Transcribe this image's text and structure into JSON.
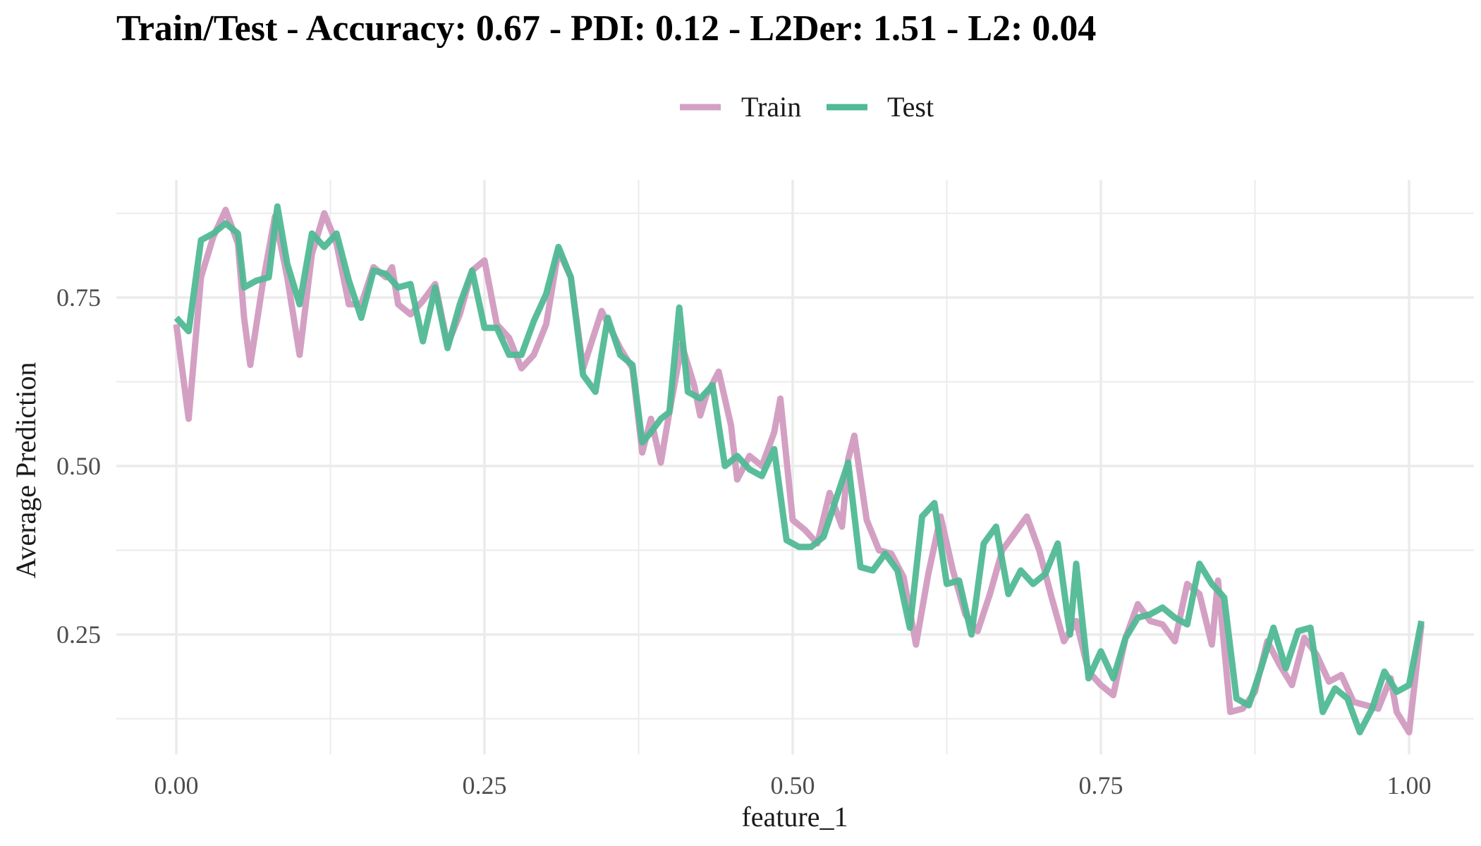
{
  "chart_data": {
    "type": "line",
    "title": "Train/Test - Accuracy: 0.67 - PDI: 0.12 - L2Der: 1.51 - L2: 0.04",
    "xlabel": "feature_1",
    "ylabel": "Average Prediction",
    "xlim": [
      -0.05,
      1.05
    ],
    "ylim": [
      0.085,
      0.935
    ],
    "x_ticks": [
      0.0,
      0.25,
      0.5,
      0.75,
      1.0
    ],
    "x_tick_labels": [
      "0.00",
      "0.25",
      "0.50",
      "0.75",
      "1.00"
    ],
    "y_ticks": [
      0.25,
      0.5,
      0.75
    ],
    "y_tick_labels": [
      "0.25",
      "0.50",
      "0.75"
    ],
    "grid": true,
    "legend_position": "top",
    "series": [
      {
        "name": "Train",
        "color": "#d3a0c3",
        "points": [
          [
            0,
            0.71
          ],
          [
            0.01,
            0.57
          ],
          [
            0.02,
            0.78
          ],
          [
            0.03,
            0.84
          ],
          [
            0.04,
            0.88
          ],
          [
            0.05,
            0.83
          ],
          [
            0.055,
            0.72
          ],
          [
            0.06,
            0.65
          ],
          [
            0.07,
            0.77
          ],
          [
            0.08,
            0.87
          ],
          [
            0.09,
            0.78
          ],
          [
            0.1,
            0.665
          ],
          [
            0.11,
            0.815
          ],
          [
            0.12,
            0.875
          ],
          [
            0.13,
            0.83
          ],
          [
            0.14,
            0.74
          ],
          [
            0.15,
            0.74
          ],
          [
            0.16,
            0.795
          ],
          [
            0.17,
            0.78
          ],
          [
            0.175,
            0.795
          ],
          [
            0.18,
            0.74
          ],
          [
            0.19,
            0.725
          ],
          [
            0.2,
            0.745
          ],
          [
            0.21,
            0.77
          ],
          [
            0.22,
            0.68
          ],
          [
            0.23,
            0.725
          ],
          [
            0.24,
            0.79
          ],
          [
            0.25,
            0.805
          ],
          [
            0.26,
            0.71
          ],
          [
            0.27,
            0.69
          ],
          [
            0.28,
            0.645
          ],
          [
            0.29,
            0.665
          ],
          [
            0.3,
            0.71
          ],
          [
            0.31,
            0.82
          ],
          [
            0.32,
            0.78
          ],
          [
            0.33,
            0.645
          ],
          [
            0.345,
            0.73
          ],
          [
            0.36,
            0.675
          ],
          [
            0.37,
            0.645
          ],
          [
            0.378,
            0.52
          ],
          [
            0.385,
            0.57
          ],
          [
            0.393,
            0.505
          ],
          [
            0.4,
            0.58
          ],
          [
            0.41,
            0.68
          ],
          [
            0.42,
            0.62
          ],
          [
            0.425,
            0.575
          ],
          [
            0.43,
            0.605
          ],
          [
            0.44,
            0.64
          ],
          [
            0.45,
            0.56
          ],
          [
            0.455,
            0.48
          ],
          [
            0.465,
            0.515
          ],
          [
            0.475,
            0.5
          ],
          [
            0.485,
            0.55
          ],
          [
            0.49,
            0.6
          ],
          [
            0.5,
            0.42
          ],
          [
            0.51,
            0.405
          ],
          [
            0.52,
            0.385
          ],
          [
            0.53,
            0.46
          ],
          [
            0.54,
            0.41
          ],
          [
            0.545,
            0.51
          ],
          [
            0.55,
            0.545
          ],
          [
            0.56,
            0.42
          ],
          [
            0.57,
            0.375
          ],
          [
            0.58,
            0.37
          ],
          [
            0.59,
            0.335
          ],
          [
            0.6,
            0.235
          ],
          [
            0.61,
            0.34
          ],
          [
            0.62,
            0.425
          ],
          [
            0.63,
            0.345
          ],
          [
            0.64,
            0.28
          ],
          [
            0.65,
            0.255
          ],
          [
            0.66,
            0.31
          ],
          [
            0.67,
            0.375
          ],
          [
            0.68,
            0.4
          ],
          [
            0.69,
            0.425
          ],
          [
            0.7,
            0.375
          ],
          [
            0.71,
            0.305
          ],
          [
            0.72,
            0.24
          ],
          [
            0.73,
            0.27
          ],
          [
            0.74,
            0.195
          ],
          [
            0.75,
            0.175
          ],
          [
            0.76,
            0.16
          ],
          [
            0.77,
            0.245
          ],
          [
            0.78,
            0.295
          ],
          [
            0.79,
            0.27
          ],
          [
            0.8,
            0.265
          ],
          [
            0.81,
            0.24
          ],
          [
            0.82,
            0.325
          ],
          [
            0.83,
            0.31
          ],
          [
            0.84,
            0.235
          ],
          [
            0.845,
            0.33
          ],
          [
            0.855,
            0.135
          ],
          [
            0.865,
            0.14
          ],
          [
            0.875,
            0.165
          ],
          [
            0.885,
            0.24
          ],
          [
            0.895,
            0.205
          ],
          [
            0.905,
            0.175
          ],
          [
            0.915,
            0.245
          ],
          [
            0.925,
            0.22
          ],
          [
            0.935,
            0.18
          ],
          [
            0.945,
            0.19
          ],
          [
            0.955,
            0.15
          ],
          [
            0.965,
            0.145
          ],
          [
            0.975,
            0.14
          ],
          [
            0.985,
            0.185
          ],
          [
            0.99,
            0.135
          ],
          [
            1.0,
            0.105
          ],
          [
            1.01,
            0.265
          ]
        ]
      },
      {
        "name": "Test",
        "color": "#50b995",
        "points": [
          [
            0,
            0.72
          ],
          [
            0.01,
            0.7
          ],
          [
            0.02,
            0.835
          ],
          [
            0.03,
            0.845
          ],
          [
            0.04,
            0.86
          ],
          [
            0.05,
            0.845
          ],
          [
            0.055,
            0.765
          ],
          [
            0.065,
            0.775
          ],
          [
            0.075,
            0.78
          ],
          [
            0.082,
            0.885
          ],
          [
            0.09,
            0.8
          ],
          [
            0.1,
            0.74
          ],
          [
            0.11,
            0.845
          ],
          [
            0.12,
            0.825
          ],
          [
            0.13,
            0.845
          ],
          [
            0.14,
            0.775
          ],
          [
            0.15,
            0.72
          ],
          [
            0.16,
            0.79
          ],
          [
            0.17,
            0.785
          ],
          [
            0.18,
            0.765
          ],
          [
            0.19,
            0.77
          ],
          [
            0.2,
            0.685
          ],
          [
            0.21,
            0.765
          ],
          [
            0.22,
            0.675
          ],
          [
            0.23,
            0.74
          ],
          [
            0.24,
            0.79
          ],
          [
            0.25,
            0.705
          ],
          [
            0.26,
            0.705
          ],
          [
            0.27,
            0.665
          ],
          [
            0.28,
            0.665
          ],
          [
            0.29,
            0.715
          ],
          [
            0.3,
            0.755
          ],
          [
            0.31,
            0.825
          ],
          [
            0.32,
            0.78
          ],
          [
            0.33,
            0.635
          ],
          [
            0.34,
            0.61
          ],
          [
            0.35,
            0.72
          ],
          [
            0.36,
            0.665
          ],
          [
            0.37,
            0.65
          ],
          [
            0.378,
            0.535
          ],
          [
            0.385,
            0.55
          ],
          [
            0.393,
            0.57
          ],
          [
            0.4,
            0.58
          ],
          [
            0.408,
            0.735
          ],
          [
            0.415,
            0.61
          ],
          [
            0.425,
            0.6
          ],
          [
            0.435,
            0.62
          ],
          [
            0.445,
            0.5
          ],
          [
            0.455,
            0.515
          ],
          [
            0.465,
            0.495
          ],
          [
            0.475,
            0.485
          ],
          [
            0.485,
            0.525
          ],
          [
            0.495,
            0.39
          ],
          [
            0.505,
            0.38
          ],
          [
            0.515,
            0.38
          ],
          [
            0.525,
            0.395
          ],
          [
            0.535,
            0.45
          ],
          [
            0.545,
            0.505
          ],
          [
            0.555,
            0.35
          ],
          [
            0.565,
            0.345
          ],
          [
            0.575,
            0.37
          ],
          [
            0.585,
            0.345
          ],
          [
            0.595,
            0.26
          ],
          [
            0.605,
            0.425
          ],
          [
            0.615,
            0.445
          ],
          [
            0.625,
            0.325
          ],
          [
            0.635,
            0.33
          ],
          [
            0.645,
            0.25
          ],
          [
            0.655,
            0.385
          ],
          [
            0.665,
            0.41
          ],
          [
            0.675,
            0.31
          ],
          [
            0.685,
            0.345
          ],
          [
            0.695,
            0.325
          ],
          [
            0.705,
            0.34
          ],
          [
            0.715,
            0.385
          ],
          [
            0.725,
            0.25
          ],
          [
            0.73,
            0.355
          ],
          [
            0.74,
            0.185
          ],
          [
            0.75,
            0.225
          ],
          [
            0.76,
            0.185
          ],
          [
            0.77,
            0.245
          ],
          [
            0.78,
            0.275
          ],
          [
            0.79,
            0.28
          ],
          [
            0.8,
            0.29
          ],
          [
            0.81,
            0.275
          ],
          [
            0.82,
            0.265
          ],
          [
            0.83,
            0.355
          ],
          [
            0.84,
            0.325
          ],
          [
            0.85,
            0.305
          ],
          [
            0.86,
            0.155
          ],
          [
            0.87,
            0.145
          ],
          [
            0.88,
            0.2
          ],
          [
            0.89,
            0.26
          ],
          [
            0.9,
            0.2
          ],
          [
            0.91,
            0.255
          ],
          [
            0.92,
            0.26
          ],
          [
            0.93,
            0.135
          ],
          [
            0.94,
            0.17
          ],
          [
            0.95,
            0.155
          ],
          [
            0.96,
            0.105
          ],
          [
            0.97,
            0.14
          ],
          [
            0.98,
            0.195
          ],
          [
            0.99,
            0.165
          ],
          [
            1.0,
            0.175
          ],
          [
            1.01,
            0.27
          ]
        ]
      }
    ]
  }
}
